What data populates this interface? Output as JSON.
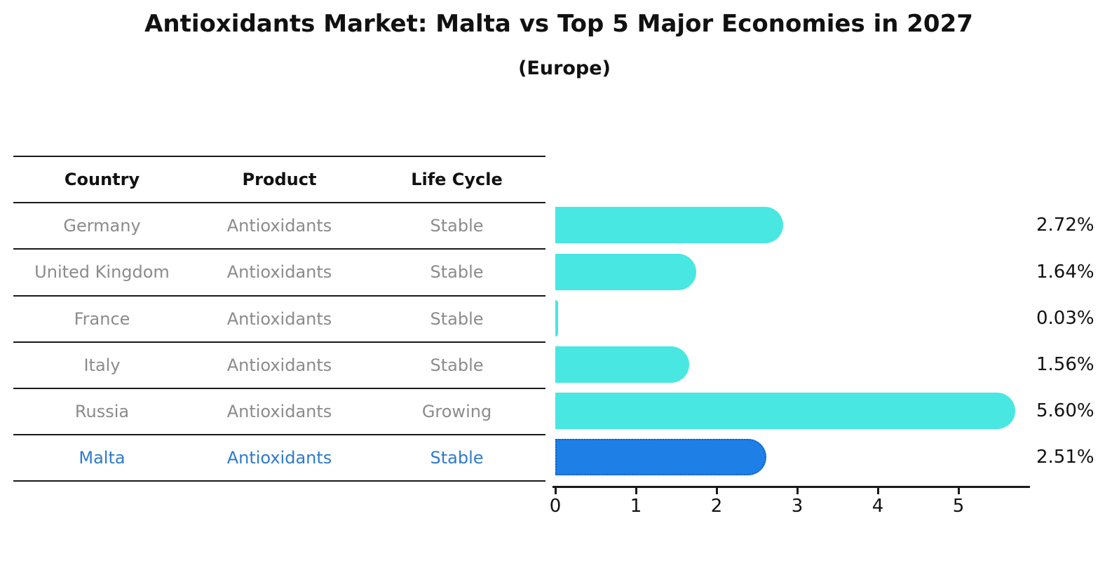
{
  "title": "Antioxidants Market: Malta vs Top 5 Major Economies in 2027",
  "subtitle": "(Europe)",
  "table": {
    "headers": [
      "Country",
      "Product",
      "Life Cycle"
    ],
    "rows": [
      {
        "country": "Germany",
        "product": "Antioxidants",
        "life_cycle": "Stable",
        "highlight": false
      },
      {
        "country": "United Kingdom",
        "product": "Antioxidants",
        "life_cycle": "Stable",
        "highlight": false
      },
      {
        "country": "France",
        "product": "Antioxidants",
        "life_cycle": "Stable",
        "highlight": false
      },
      {
        "country": "Italy",
        "product": "Antioxidants",
        "life_cycle": "Stable",
        "highlight": false
      },
      {
        "country": "Russia",
        "product": "Antioxidants",
        "life_cycle": "Growing",
        "highlight": false
      },
      {
        "country": "Malta",
        "product": "Antioxidants",
        "life_cycle": "Stable",
        "highlight": true
      }
    ]
  },
  "chart_data": {
    "type": "bar",
    "orientation": "horizontal",
    "title": "Antioxidants Market: Malta vs Top 5 Major Economies in 2027",
    "subtitle": "(Europe)",
    "categories": [
      "Germany",
      "United Kingdom",
      "France",
      "Italy",
      "Russia",
      "Malta"
    ],
    "values": [
      2.72,
      1.64,
      0.03,
      1.56,
      5.6,
      2.51
    ],
    "value_labels": [
      "2.72%",
      "1.64%",
      "0.03%",
      "1.56%",
      "5.60%",
      "2.51%"
    ],
    "x_ticks": [
      "0",
      "1",
      "2",
      "3",
      "4",
      "5"
    ],
    "xlim": [
      0,
      5.89
    ],
    "grid": false,
    "legend": false,
    "highlight_index": 5,
    "bar_color": "#49e7e1",
    "highlight_bar_color": "#1e80e6",
    "highlight_border_color": "#1060c8"
  },
  "colors": {
    "text": "#111111",
    "muted_text": "#8b8b8b",
    "highlight_text": "#2e7bcc",
    "line": "#1a1a1a",
    "background": "#ffffff"
  }
}
